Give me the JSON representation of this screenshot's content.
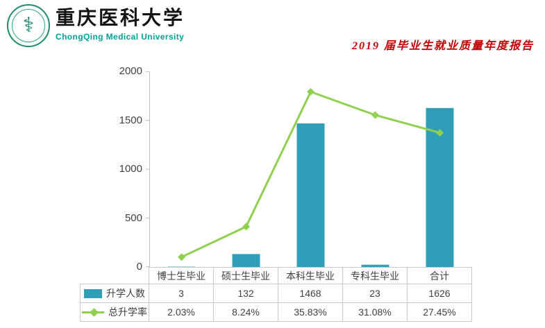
{
  "header": {
    "university_cn": "重庆医科大学",
    "university_en": "ChongQing Medical University",
    "report_title": "2019 届毕业生就业质量年度报告"
  },
  "chart_data": {
    "type": "bar+line",
    "title": "",
    "categories": [
      "博士生毕业",
      "硕士生毕业",
      "本科生毕业",
      "专科生毕业",
      "合计"
    ],
    "series": [
      {
        "name": "升学人数",
        "type": "bar",
        "color": "#2E9FB7",
        "values": [
          3,
          132,
          1468,
          23,
          1626
        ]
      },
      {
        "name": "总升学率",
        "type": "line",
        "color": "#8FD14F",
        "values_percent": [
          2.03,
          8.24,
          35.83,
          31.08,
          27.45
        ],
        "labels": [
          "2.03%",
          "8.24%",
          "35.83%",
          "31.08%",
          "27.45%"
        ],
        "plotted_on_primary_axis_scale": 50
      }
    ],
    "ylim": [
      0,
      2000
    ],
    "yticks": [
      0,
      500,
      1000,
      1500,
      2000
    ],
    "grid": false,
    "axis_color": "#BFBFBF",
    "legend_position": "data-table-left"
  }
}
